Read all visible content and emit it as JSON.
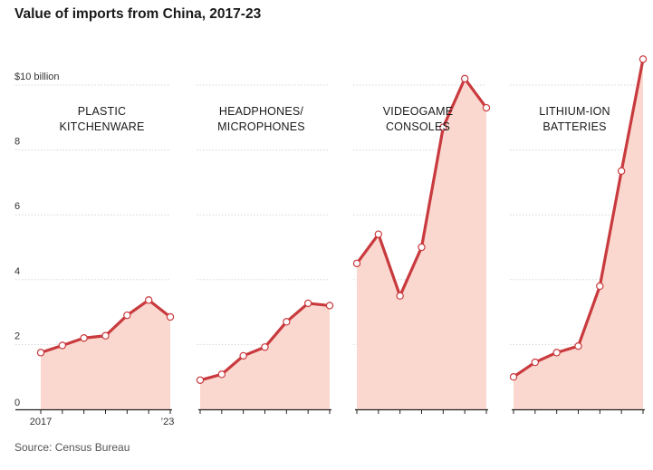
{
  "title": "Value of imports from China, 2017-23",
  "source": "Source: Census Bureau",
  "colors": {
    "line": "#c93a3e",
    "fill": "#fad8cf",
    "grid": "#d6d6d6",
    "axis": "#222222"
  },
  "chart_data": {
    "type": "area",
    "title": "Value of imports from China, 2017-23",
    "ylabel": "$10 billion",
    "ylim": [
      0,
      10
    ],
    "yticks": [
      0,
      2,
      4,
      6,
      8,
      10
    ],
    "ytick_labels": [
      "0",
      "2",
      "4",
      "6",
      "8",
      "$10 billion"
    ],
    "x": [
      2017,
      2018,
      2019,
      2020,
      2021,
      2022,
      2023
    ],
    "x_tick_labels": [
      "2017",
      "’23"
    ],
    "grid": true,
    "series": [
      {
        "name": "PLASTIC KITCHENWARE",
        "title_lines": [
          "PLASTIC",
          "KITCHENWARE"
        ],
        "values": [
          1.75,
          1.97,
          2.2,
          2.27,
          2.9,
          3.37,
          2.85
        ]
      },
      {
        "name": "HEADPHONES/ MICROPHONES",
        "title_lines": [
          "HEADPHONES/",
          "MICROPHONES"
        ],
        "values": [
          0.9,
          1.08,
          1.65,
          1.92,
          2.7,
          3.27,
          3.2
        ]
      },
      {
        "name": "VIDEOGAME CONSOLES",
        "title_lines": [
          "VIDEOGAME",
          "CONSOLES"
        ],
        "values": [
          4.5,
          5.4,
          3.5,
          5.0,
          8.7,
          10.2,
          9.3
        ]
      },
      {
        "name": "LITHIUM-ION BATTERIES",
        "title_lines": [
          "LITHIUM-ION",
          "BATTERIES"
        ],
        "values": [
          1.0,
          1.45,
          1.75,
          1.95,
          3.8,
          7.35,
          10.8
        ]
      }
    ]
  }
}
